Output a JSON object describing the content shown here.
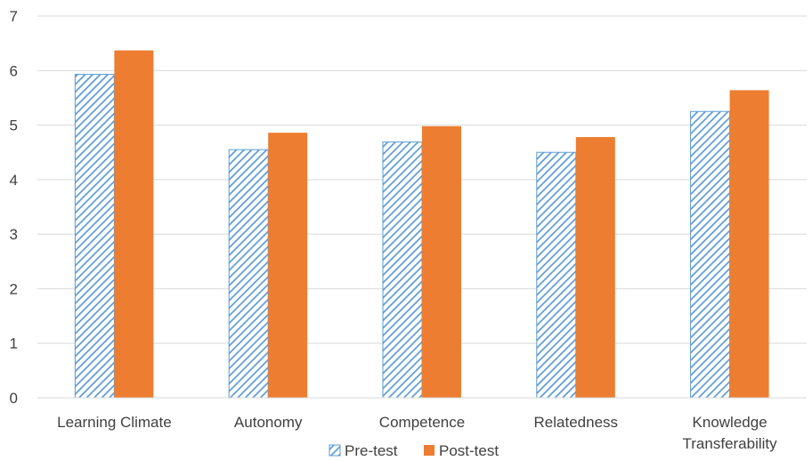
{
  "chart_data": {
    "type": "bar",
    "categories": [
      [
        "Learning Climate"
      ],
      [
        "Autonomy"
      ],
      [
        "Competence"
      ],
      [
        "Relatedness"
      ],
      [
        "Knowledge",
        "Transferability"
      ]
    ],
    "series": [
      {
        "name": "Pre-test",
        "values": [
          5.93,
          4.55,
          4.69,
          4.5,
          5.25
        ],
        "color": "#5b9bd5",
        "fill": "diagonal-hatch"
      },
      {
        "name": "Post-test",
        "values": [
          6.37,
          4.86,
          4.98,
          4.78,
          5.64
        ],
        "color": "#ed7d31",
        "fill": "solid"
      }
    ],
    "ylim": [
      0,
      7
    ],
    "yticks": [
      0,
      1,
      2,
      3,
      4,
      5,
      6,
      7
    ],
    "grid": true,
    "legend": "bottom-center"
  }
}
